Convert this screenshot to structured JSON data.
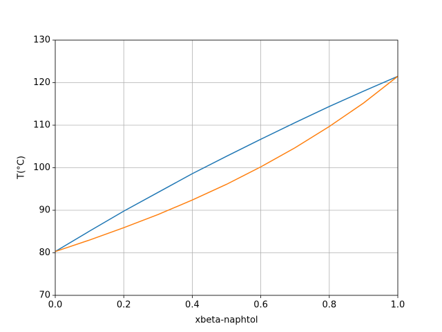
{
  "chart_data": {
    "type": "line",
    "x_label": "xbeta-naphtol",
    "y_label": "T(°C)",
    "x": [
      0,
      0.1,
      0.2,
      0.3,
      0.4,
      0.5,
      0.6,
      0.7,
      0.8,
      0.9,
      1
    ],
    "series": [
      {
        "color": "#1f77b4",
        "values": [
          80.3,
          85.1,
          89.8,
          94.2,
          98.6,
          102.7,
          106.7,
          110.6,
          114.4,
          118.0,
          121.5
        ]
      },
      {
        "color": "#ff7f0e",
        "values": [
          80.3,
          83.0,
          85.9,
          89.0,
          92.4,
          96.1,
          100.2,
          104.7,
          109.7,
          115.2,
          121.5
        ]
      }
    ],
    "xlim": [
      0,
      1
    ],
    "ylim": [
      70,
      130
    ],
    "xticks": [
      {
        "value": 0,
        "label": "0.0"
      },
      0.2,
      0.4,
      0.6,
      0.8,
      {
        "value": 1,
        "label": "1.0"
      }
    ],
    "yticks": [
      70,
      80,
      90,
      100,
      110,
      120,
      130
    ],
    "grid": true
  }
}
